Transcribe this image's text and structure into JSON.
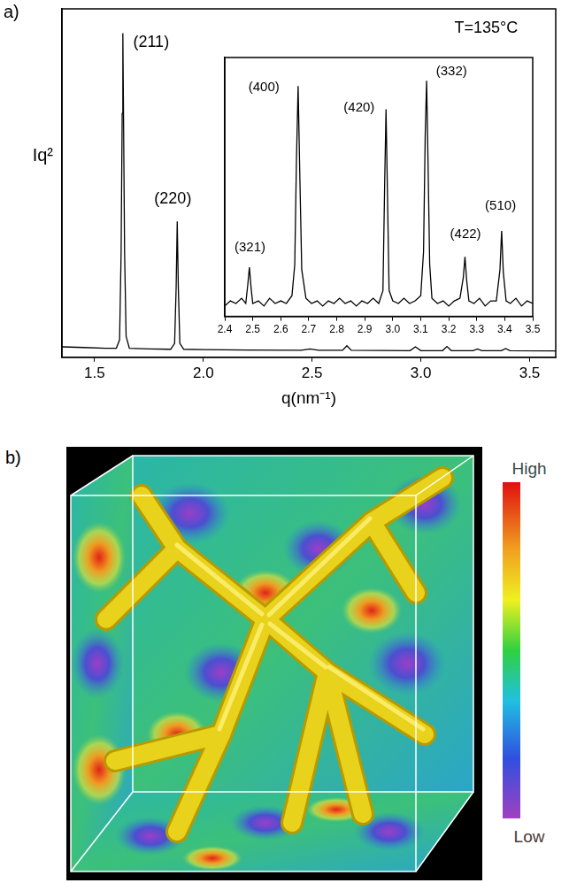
{
  "chart_data": [
    {
      "panel": "a)",
      "type": "line",
      "x_label": "q(nm⁻¹)",
      "y_label": "Iq²",
      "color": "#000000",
      "x": [
        1.35,
        1.45,
        1.55,
        1.6,
        1.615,
        1.622,
        1.627,
        1.63,
        1.633,
        1.638,
        1.645,
        1.66,
        1.75,
        1.85,
        1.868,
        1.875,
        1.88,
        1.885,
        1.892,
        1.91,
        2.0,
        2.2,
        2.45,
        2.49,
        2.53,
        2.64,
        2.66,
        2.68,
        2.95,
        2.975,
        3.0,
        3.1,
        3.12,
        3.14,
        3.24,
        3.26,
        3.28,
        3.37,
        3.39,
        3.41,
        3.62
      ],
      "values": [
        3.0,
        2.8,
        2.6,
        2.6,
        5,
        30,
        70,
        93,
        70,
        30,
        6,
        2.6,
        2.4,
        2.3,
        4,
        20,
        39,
        20,
        4,
        2.3,
        2.2,
        2.1,
        2.0,
        2.4,
        2.0,
        2.0,
        3.3,
        2.0,
        1.9,
        3.0,
        1.9,
        1.9,
        3.1,
        1.9,
        1.9,
        2.4,
        1.9,
        1.9,
        2.5,
        1.9,
        1.8
      ],
      "xlim": [
        1.35,
        3.62
      ],
      "xticks": [
        1.5,
        {
          "value": 2,
          "label": "2.0"
        },
        2.5,
        {
          "value": 3,
          "label": "3.0"
        },
        3.5
      ],
      "ylim": [
        0,
        100
      ],
      "tick_labels": "x",
      "grid": false,
      "annotations": [
        {
          "text": "(211)",
          "x": 1.76,
          "y": 88
        },
        {
          "text": "(220)",
          "x": 1.86,
          "y": 43
        },
        {
          "text": "T=135°C",
          "x": 3.3,
          "y": 92
        }
      ]
    },
    {
      "type": "line",
      "color": "#000000",
      "x": [
        2.4,
        2.42,
        2.44,
        2.46,
        2.475,
        2.482,
        2.488,
        2.494,
        2.5,
        2.52,
        2.54,
        2.56,
        2.58,
        2.6,
        2.62,
        2.64,
        2.65,
        2.656,
        2.662,
        2.668,
        2.675,
        2.69,
        2.71,
        2.73,
        2.75,
        2.77,
        2.79,
        2.81,
        2.83,
        2.85,
        2.87,
        2.89,
        2.91,
        2.93,
        2.95,
        2.965,
        2.971,
        2.976,
        2.981,
        2.987,
        3.0,
        3.02,
        3.04,
        3.06,
        3.08,
        3.1,
        3.11,
        3.116,
        3.121,
        3.126,
        3.132,
        3.14,
        3.16,
        3.18,
        3.2,
        3.22,
        3.24,
        3.252,
        3.258,
        3.264,
        3.272,
        3.29,
        3.31,
        3.33,
        3.35,
        3.37,
        3.383,
        3.389,
        3.395,
        3.405,
        3.42,
        3.44,
        3.46,
        3.48,
        3.5
      ],
      "values": [
        4,
        6,
        5,
        7,
        5,
        12,
        19,
        11,
        5,
        6,
        4,
        7,
        5,
        6,
        5,
        8,
        20,
        60,
        89,
        55,
        18,
        7,
        5,
        6,
        4,
        6,
        5,
        7,
        5,
        6,
        4,
        6,
        5,
        7,
        5,
        10,
        50,
        80,
        48,
        10,
        6,
        5,
        7,
        5,
        6,
        8,
        25,
        70,
        91,
        60,
        20,
        7,
        5,
        6,
        4,
        6,
        7,
        15,
        23,
        14,
        6,
        5,
        7,
        4,
        6,
        6,
        18,
        33,
        17,
        6,
        5,
        7,
        4,
        6,
        5
      ],
      "xlim": [
        2.4,
        3.5
      ],
      "xticks": [
        2.4,
        2.5,
        2.6,
        2.7,
        2.8,
        2.9,
        {
          "value": 3,
          "label": "3.0"
        },
        3.1,
        3.2,
        3.3,
        3.4,
        3.5
      ],
      "ylim": [
        0,
        100
      ],
      "tick_labels": "x",
      "grid": false,
      "annotations": [
        {
          "text": "(321)",
          "x": 2.49,
          "y": 24
        },
        {
          "text": "(400)",
          "x": 2.54,
          "y": 86
        },
        {
          "text": "(420)",
          "x": 2.88,
          "y": 78
        },
        {
          "text": "(332)",
          "x": 3.21,
          "y": 92
        },
        {
          "text": "(422)",
          "x": 3.26,
          "y": 29
        },
        {
          "text": "(510)",
          "x": 3.385,
          "y": 40
        }
      ]
    }
  ],
  "panel_b": {
    "letter": "b)",
    "colorbar": {
      "top": "High",
      "bottom": "Low"
    }
  }
}
